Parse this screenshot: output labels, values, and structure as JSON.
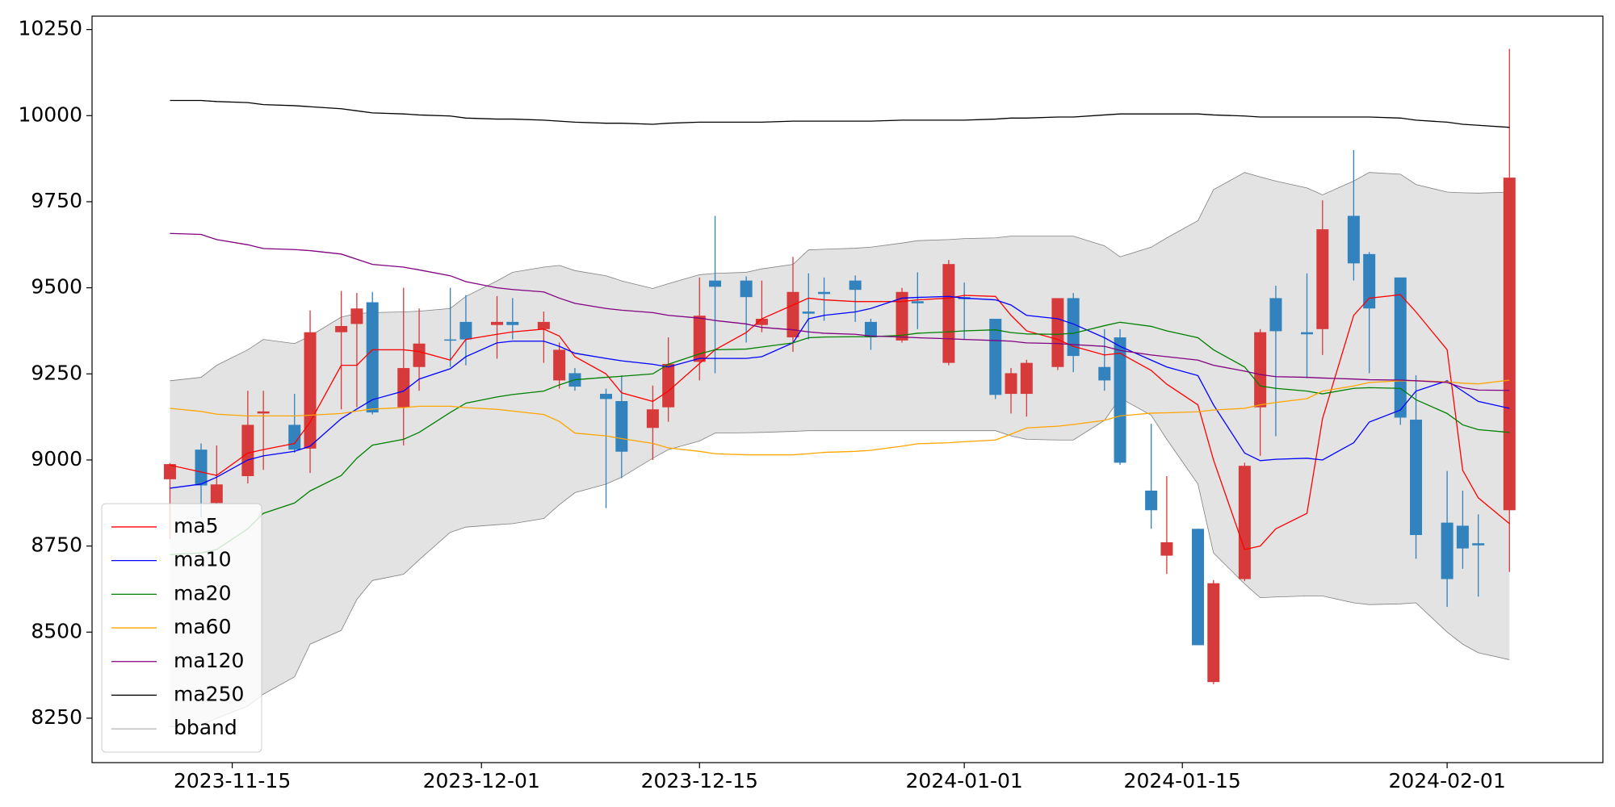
{
  "chart_data": {
    "type": "candlestick",
    "x": [
      "2023-11-11",
      "2023-11-13",
      "2023-11-14",
      "2023-11-16",
      "2023-11-17",
      "2023-11-19",
      "2023-11-20",
      "2023-11-22",
      "2023-11-23",
      "2023-11-24",
      "2023-11-26",
      "2023-11-27",
      "2023-11-29",
      "2023-11-30",
      "2023-12-02",
      "2023-12-03",
      "2023-12-05",
      "2023-12-06",
      "2023-12-07",
      "2023-12-09",
      "2023-12-10",
      "2023-12-12",
      "2023-12-13",
      "2023-12-15",
      "2023-12-16",
      "2023-12-18",
      "2023-12-19",
      "2023-12-21",
      "2023-12-22",
      "2023-12-23",
      "2023-12-25",
      "2023-12-26",
      "2023-12-28",
      "2023-12-29",
      "2023-12-31",
      "2024-01-01",
      "2024-01-03",
      "2024-01-04",
      "2024-01-05",
      "2024-01-07",
      "2024-01-08",
      "2024-01-10",
      "2024-01-11",
      "2024-01-13",
      "2024-01-14",
      "2024-01-16",
      "2024-01-17",
      "2024-01-19",
      "2024-01-20",
      "2024-01-21",
      "2024-01-23",
      "2024-01-24",
      "2024-01-26",
      "2024-01-27",
      "2024-01-29",
      "2024-01-30",
      "2024-02-01",
      "2024-02-02",
      "2024-02-03",
      "2024-02-05"
    ],
    "open": [
      8944,
      9030,
      8875,
      8953,
      9135,
      9102,
      9033,
      9371,
      9395,
      9458,
      9153,
      9270,
      9350,
      9401,
      9392,
      9401,
      9380,
      9231,
      9252,
      9192,
      9171,
      9093,
      9153,
      9285,
      9521,
      9521,
      9392,
      9356,
      9431,
      9488,
      9521,
      9401,
      9347,
      9461,
      9282,
      9473,
      9410,
      9192,
      9192,
      9270,
      9470,
      9270,
      9356,
      8911,
      8722,
      8800,
      8355,
      8654,
      9153,
      9470,
      9371,
      9380,
      9709,
      9598,
      9530,
      9117,
      8818,
      8809,
      8758,
      8854
    ],
    "high": [
      8991,
      9048,
      9042,
      9201,
      9201,
      9192,
      9434,
      9491,
      9485,
      9488,
      9500,
      9440,
      9500,
      9479,
      9476,
      9470,
      9431,
      9341,
      9267,
      9207,
      9246,
      9216,
      9356,
      9530,
      9709,
      9533,
      9521,
      9590,
      9542,
      9530,
      9536,
      9410,
      9500,
      9545,
      9581,
      9515,
      9410,
      9267,
      9291,
      9470,
      9485,
      9380,
      9380,
      9105,
      8953,
      8800,
      8651,
      8992,
      9380,
      9506,
      9542,
      9754,
      9900,
      9604,
      9530,
      9246,
      8968,
      8911,
      8842,
      10194
    ],
    "low": [
      8770,
      8833,
      8872,
      8932,
      8971,
      9021,
      8962,
      9147,
      9153,
      9132,
      9042,
      9201,
      9270,
      9275,
      9294,
      9350,
      9282,
      9207,
      9201,
      8860,
      8947,
      9000,
      9111,
      9231,
      9252,
      9341,
      9371,
      9314,
      9350,
      9404,
      9401,
      9320,
      9341,
      9380,
      9275,
      9350,
      9177,
      9135,
      9126,
      9261,
      9255,
      9201,
      8986,
      8800,
      8669,
      8462,
      8349,
      8648,
      9012,
      9069,
      9237,
      9305,
      9521,
      9252,
      9102,
      8713,
      8573,
      8684,
      8603,
      8675
    ],
    "close": [
      8988,
      8926,
      8929,
      9102,
      9141,
      9030,
      9371,
      9389,
      9440,
      9138,
      9267,
      9338,
      9347,
      9350,
      9401,
      9392,
      9401,
      9320,
      9213,
      9177,
      9024,
      9147,
      9279,
      9419,
      9503,
      9473,
      9410,
      9488,
      9425,
      9482,
      9494,
      9356,
      9488,
      9455,
      9569,
      9467,
      9189,
      9252,
      9282,
      9470,
      9302,
      9231,
      8992,
      8854,
      8761,
      8462,
      8642,
      8983,
      9371,
      9374,
      9365,
      9670,
      9571,
      9440,
      9123,
      8782,
      8654,
      8743,
      8752,
      9820
    ],
    "up_color": "#d73a3a",
    "down_color": "#3182bd",
    "series": [
      {
        "name": "ma5",
        "color": "#ff0000",
        "values": [
          8985,
          8965,
          8955,
          9020,
          9030,
          9048,
          9110,
          9275,
          9275,
          9320,
          9320,
          9315,
          9290,
          9350,
          9365,
          9372,
          9380,
          9360,
          9300,
          9250,
          9195,
          9170,
          9200,
          9280,
          9320,
          9370,
          9410,
          9450,
          9470,
          9465,
          9460,
          9460,
          9460,
          9465,
          9470,
          9478,
          9475,
          9420,
          9375,
          9350,
          9330,
          9305,
          9310,
          9260,
          9220,
          9160,
          9000,
          8740,
          8750,
          8800,
          8845,
          9120,
          9420,
          9470,
          9480,
          9430,
          9320,
          8970,
          8890,
          8815
        ]
      },
      {
        "name": "ma10",
        "color": "#0000ff",
        "values": [
          8918,
          8930,
          8950,
          9000,
          9012,
          9025,
          9040,
          9120,
          9148,
          9175,
          9200,
          9235,
          9265,
          9300,
          9340,
          9345,
          9345,
          9330,
          9310,
          9295,
          9288,
          9278,
          9270,
          9295,
          9295,
          9295,
          9300,
          9340,
          9410,
          9420,
          9430,
          9440,
          9470,
          9472,
          9475,
          9470,
          9465,
          9450,
          9420,
          9410,
          9395,
          9355,
          9330,
          9290,
          9270,
          9245,
          9160,
          9020,
          8998,
          9002,
          9005,
          9000,
          9050,
          9110,
          9145,
          9200,
          9230,
          9200,
          9170,
          9150
        ]
      },
      {
        "name": "ma20",
        "color": "#008000",
        "values": [
          8725,
          8730,
          8740,
          8800,
          8845,
          8875,
          8910,
          8955,
          9005,
          9043,
          9060,
          9080,
          9138,
          9165,
          9183,
          9190,
          9200,
          9218,
          9233,
          9240,
          9243,
          9250,
          9278,
          9308,
          9320,
          9322,
          9328,
          9340,
          9355,
          9357,
          9358,
          9358,
          9362,
          9368,
          9372,
          9375,
          9378,
          9370,
          9366,
          9365,
          9368,
          9390,
          9400,
          9388,
          9375,
          9355,
          9320,
          9270,
          9215,
          9208,
          9200,
          9192,
          9208,
          9210,
          9208,
          9175,
          9135,
          9102,
          9088,
          9080
        ]
      },
      {
        "name": "ma60",
        "color": "#ffa500",
        "values": [
          9150,
          9141,
          9133,
          9128,
          9128,
          9128,
          9130,
          9135,
          9142,
          9148,
          9152,
          9156,
          9156,
          9152,
          9147,
          9142,
          9132,
          9112,
          9078,
          9070,
          9062,
          9048,
          9035,
          9025,
          9018,
          9015,
          9015,
          9015,
          9018,
          9022,
          9025,
          9028,
          9040,
          9047,
          9050,
          9053,
          9058,
          9075,
          9093,
          9098,
          9103,
          9115,
          9128,
          9136,
          9137,
          9140,
          9145,
          9150,
          9160,
          9167,
          9178,
          9200,
          9215,
          9225,
          9230,
          9230,
          9227,
          9223,
          9221,
          9232
        ]
      },
      {
        "name": "ma120",
        "color": "#800080",
        "values": [
          9658,
          9655,
          9640,
          9625,
          9614,
          9611,
          9608,
          9598,
          9583,
          9568,
          9560,
          9552,
          9535,
          9518,
          9500,
          9495,
          9488,
          9470,
          9455,
          9440,
          9435,
          9428,
          9420,
          9412,
          9405,
          9395,
          9385,
          9378,
          9372,
          9368,
          9365,
          9360,
          9357,
          9355,
          9352,
          9350,
          9347,
          9345,
          9340,
          9338,
          9335,
          9330,
          9318,
          9305,
          9300,
          9290,
          9275,
          9258,
          9248,
          9242,
          9240,
          9238,
          9235,
          9233,
          9232,
          9230,
          9225,
          9210,
          9203,
          9202
        ]
      },
      {
        "name": "ma250",
        "color": "#000000",
        "values": [
          10044,
          10044,
          10041,
          10038,
          10032,
          10029,
          10026,
          10020,
          10014,
          10008,
          10005,
          10002,
          9999,
          9993,
          9990,
          9990,
          9987,
          9984,
          9981,
          9978,
          9978,
          9975,
          9978,
          9981,
          9981,
          9981,
          9981,
          9984,
          9984,
          9984,
          9984,
          9984,
          9987,
          9987,
          9987,
          9987,
          9990,
          9993,
          9993,
          9996,
          9996,
          10002,
          10005,
          10005,
          10005,
          10005,
          10002,
          9999,
          9996,
          9996,
          9996,
          9996,
          9996,
          9996,
          9993,
          9987,
          9981,
          9975,
          9972,
          9966
        ]
      }
    ],
    "band": {
      "name": "bband",
      "color": "#808080",
      "fill": "#e3e3e3",
      "upper": [
        9230,
        9240,
        9275,
        9320,
        9350,
        9338,
        9360,
        9415,
        9425,
        9428,
        9430,
        9432,
        9440,
        9475,
        9520,
        9545,
        9560,
        9565,
        9550,
        9535,
        9520,
        9498,
        9512,
        9538,
        9542,
        9545,
        9555,
        9568,
        9610,
        9612,
        9615,
        9618,
        9630,
        9637,
        9640,
        9643,
        9645,
        9650,
        9650,
        9650,
        9650,
        9622,
        9590,
        9618,
        9645,
        9695,
        9785,
        9835,
        9822,
        9810,
        9790,
        9770,
        9810,
        9835,
        9830,
        9800,
        9778,
        9776,
        9775,
        9778
      ],
      "lower": [
        8225,
        8230,
        8250,
        8285,
        8320,
        8370,
        8465,
        8505,
        8595,
        8650,
        8668,
        8710,
        8790,
        8805,
        8812,
        8815,
        8830,
        8870,
        8905,
        8930,
        8950,
        9005,
        9030,
        9055,
        9078,
        9079,
        9080,
        9083,
        9085,
        9085,
        9085,
        9085,
        9085,
        9085,
        9085,
        9085,
        9085,
        9070,
        9060,
        9058,
        9058,
        9115,
        9180,
        9130,
        9060,
        8930,
        8730,
        8640,
        8600,
        8602,
        8605,
        8605,
        8585,
        8580,
        8582,
        8585,
        8500,
        8465,
        8440,
        8420
      ]
    },
    "xlim": [
      "2023-11-06",
      "2024-02-11"
    ],
    "xticks": [
      "2023-11-15",
      "2023-12-01",
      "2023-12-15",
      "2024-01-01",
      "2024-01-15",
      "2024-02-01"
    ],
    "ylim": [
      8121,
      10289
    ],
    "yticks": [
      8250,
      8500,
      8750,
      9000,
      9250,
      9500,
      9750,
      10000,
      10250
    ],
    "legend": "lower left"
  }
}
